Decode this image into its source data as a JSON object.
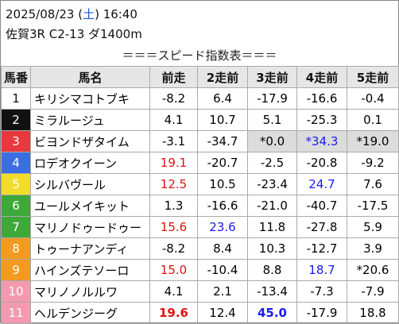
{
  "header": {
    "date_line": [
      "2025/08/23 (",
      "土",
      ") 16:40"
    ],
    "race": "佐賀3R C2-13 ダ1400m"
  },
  "title": "＝＝＝スピード指数表＝＝＝",
  "table": {
    "columns": [
      "馬番",
      "馬名",
      "前走",
      "2走前",
      "3走前",
      "4走前",
      "5走前"
    ],
    "rows": [
      [
        "1",
        "キリシマコトブキ",
        "-8.2",
        "6.4",
        "-17.9",
        "-16.6",
        "-0.4"
      ],
      [
        "2",
        "ミラルージュ",
        "4.1",
        "10.7",
        "5.1",
        "-25.3",
        "0.1"
      ],
      [
        "3",
        "ビヨンドザタイム",
        "-3.1",
        "-34.7",
        "*0.0",
        "*34.3",
        "*19.0"
      ],
      [
        "4",
        "ロデオクイーン",
        "19.1",
        "-20.7",
        "-2.5",
        "-20.8",
        "-9.2"
      ],
      [
        "5",
        "シルバヴール",
        "12.5",
        "10.5",
        "-23.4",
        "24.7",
        "7.6"
      ],
      [
        "6",
        "ユールメイキット",
        "1.3",
        "-16.6",
        "-21.0",
        "-40.7",
        "-17.5"
      ],
      [
        "7",
        "マリノドゥードゥー",
        "15.6",
        "23.6",
        "11.8",
        "-27.8",
        "5.9"
      ],
      [
        "8",
        "トゥーナアンディ",
        "-8.2",
        "8.4",
        "10.3",
        "-12.7",
        "3.9"
      ],
      [
        "9",
        "ハインズテソーロ",
        "15.0",
        "-10.4",
        "8.8",
        "18.7",
        "*20.6"
      ],
      [
        "10",
        "マリノノルルワ",
        "4.1",
        "2.1",
        "-13.4",
        "-7.3",
        "-7.9"
      ],
      [
        "11",
        "ヘルデンジーグ",
        "19.6",
        "12.4",
        "45.0",
        "-17.9",
        "18.8"
      ]
    ]
  }
}
